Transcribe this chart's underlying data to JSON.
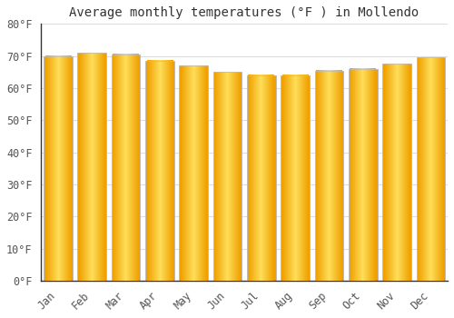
{
  "title": "Average monthly temperatures (°F ) in Mollendo",
  "months": [
    "Jan",
    "Feb",
    "Mar",
    "Apr",
    "May",
    "Jun",
    "Jul",
    "Aug",
    "Sep",
    "Oct",
    "Nov",
    "Dec"
  ],
  "values": [
    70,
    71,
    70.5,
    68.5,
    67,
    65,
    64,
    64,
    65.5,
    66,
    67.5,
    69.5
  ],
  "bar_color_center": "#FFD060",
  "bar_color_edge": "#F0A000",
  "background_color": "#FFFFFF",
  "ylim": [
    0,
    80
  ],
  "yticks": [
    0,
    10,
    20,
    30,
    40,
    50,
    60,
    70,
    80
  ],
  "grid_color": "#DDDDDD",
  "title_fontsize": 10,
  "tick_fontsize": 8.5,
  "bar_width": 0.85
}
